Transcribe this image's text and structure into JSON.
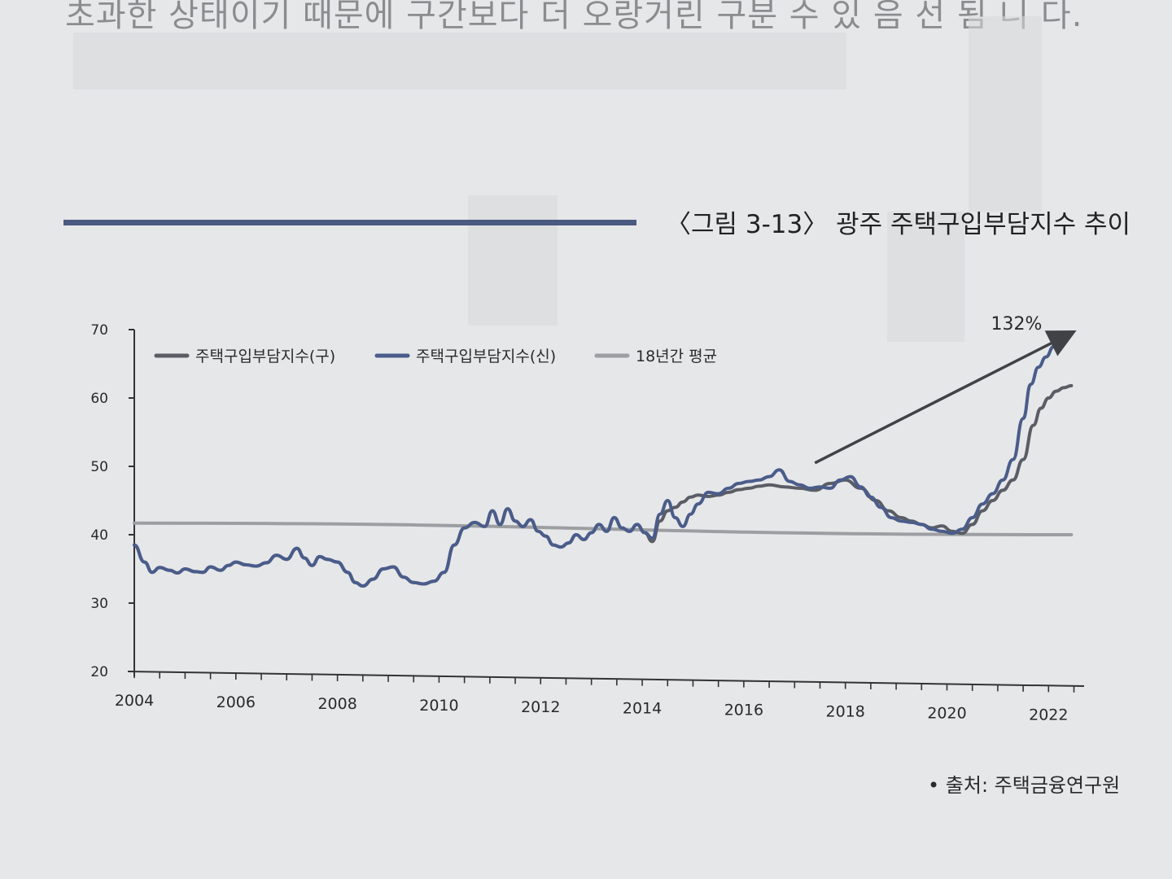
{
  "page": {
    "top_text": "초과한 상태이기 때문에 구간보다 더 오랑거린 구분 수 있 음 선 됨 니 다.",
    "figure_title": "〈그림 3-13〉 광주 주택구입부담지수 추이",
    "source": "• 출처: 주택금융연구원"
  },
  "chart_data": {
    "type": "line",
    "title": "〈그림 3-13〉 광주 주택구입부담지수 추이",
    "xlabel": "",
    "ylabel": "",
    "xlim": [
      2004,
      2022.7
    ],
    "ylim": [
      20,
      70
    ],
    "xticks": [
      2004,
      2006,
      2008,
      2010,
      2012,
      2014,
      2016,
      2018,
      2020,
      2022
    ],
    "xtick_labels": [
      "2004",
      "2006",
      "2008",
      "2010",
      "2012",
      "2014",
      "2016",
      "2018",
      "2020",
      "2022"
    ],
    "yticks": [
      20,
      30,
      40,
      50,
      60,
      70
    ],
    "ytick_labels": [
      "20",
      "30",
      "40",
      "50",
      "60",
      "70"
    ],
    "grid": false,
    "legend_position": "top-left",
    "series": [
      {
        "name": "주택구입부담지수(구)",
        "color": "#5a5d64",
        "x": [
          2004.0,
          2004.2,
          2004.35,
          2004.5,
          2004.7,
          2004.85,
          2005.0,
          2005.2,
          2005.35,
          2005.5,
          2005.7,
          2005.85,
          2006.0,
          2006.2,
          2006.4,
          2006.6,
          2006.8,
          2007.0,
          2007.2,
          2007.35,
          2007.5,
          2007.65,
          2007.8,
          2008.0,
          2008.2,
          2008.35,
          2008.5,
          2008.7,
          2008.9,
          2009.1,
          2009.3,
          2009.5,
          2009.7,
          2009.9,
          2010.1,
          2010.3,
          2010.5,
          2010.7,
          2010.9,
          2011.05,
          2011.2,
          2011.35,
          2011.5,
          2011.65,
          2011.8,
          2011.95,
          2012.1,
          2012.25,
          2012.4,
          2012.55,
          2012.7,
          2012.85,
          2013.0,
          2013.15,
          2013.3,
          2013.45,
          2013.6,
          2013.75,
          2013.9,
          2014.05,
          2014.2,
          2014.35,
          2014.5,
          2014.65,
          2014.8,
          2014.95,
          2015.1,
          2015.3,
          2015.5,
          2015.7,
          2015.9,
          2016.1,
          2016.3,
          2016.5,
          2016.8,
          2017.1,
          2017.4,
          2017.7,
          2018.0,
          2018.3,
          2018.6,
          2018.85,
          2019.1,
          2019.3,
          2019.5,
          2019.7,
          2019.9,
          2020.1,
          2020.3,
          2020.5,
          2020.7,
          2020.9,
          2021.1,
          2021.3,
          2021.5,
          2021.7,
          2021.85,
          2022.0,
          2022.15,
          2022.3,
          2022.45
        ],
        "values": [
          38.5,
          36.0,
          34.5,
          35.2,
          34.8,
          34.4,
          35.0,
          34.6,
          34.5,
          35.3,
          34.8,
          35.5,
          36.0,
          35.6,
          35.4,
          35.9,
          37.0,
          36.4,
          38.0,
          36.6,
          35.5,
          36.8,
          36.4,
          36.0,
          34.5,
          33.0,
          32.5,
          33.5,
          35.0,
          35.3,
          33.8,
          33.0,
          32.8,
          33.2,
          34.5,
          38.5,
          41.0,
          41.8,
          41.2,
          43.5,
          41.5,
          43.8,
          42.0,
          41.2,
          42.2,
          40.5,
          39.8,
          38.5,
          38.2,
          38.8,
          40.0,
          39.3,
          40.3,
          41.5,
          40.5,
          42.5,
          41.0,
          40.5,
          41.5,
          40.3,
          39.0,
          42.0,
          43.5,
          44.0,
          44.8,
          45.5,
          45.8,
          45.6,
          45.8,
          46.2,
          46.6,
          46.8,
          47.1,
          47.3,
          47.0,
          46.8,
          46.5,
          47.5,
          48.0,
          46.8,
          45.0,
          43.5,
          42.5,
          42.0,
          41.5,
          41.0,
          41.3,
          40.5,
          40.2,
          41.5,
          43.5,
          45.0,
          46.5,
          48.0,
          51.0,
          56.0,
          58.5,
          60.0,
          61.0,
          61.5,
          61.8
        ]
      },
      {
        "name": "주택구입부담지수(신)",
        "color": "#4a5c8a",
        "x": [
          2004.0,
          2004.2,
          2004.35,
          2004.5,
          2004.7,
          2004.85,
          2005.0,
          2005.2,
          2005.35,
          2005.5,
          2005.7,
          2005.85,
          2006.0,
          2006.2,
          2006.4,
          2006.6,
          2006.8,
          2007.0,
          2007.2,
          2007.35,
          2007.5,
          2007.65,
          2007.8,
          2008.0,
          2008.2,
          2008.35,
          2008.5,
          2008.7,
          2008.9,
          2009.1,
          2009.3,
          2009.5,
          2009.7,
          2009.9,
          2010.1,
          2010.3,
          2010.5,
          2010.7,
          2010.9,
          2011.05,
          2011.2,
          2011.35,
          2011.5,
          2011.65,
          2011.8,
          2011.95,
          2012.1,
          2012.25,
          2012.4,
          2012.55,
          2012.7,
          2012.85,
          2013.0,
          2013.15,
          2013.3,
          2013.45,
          2013.6,
          2013.75,
          2013.9,
          2014.05,
          2014.2,
          2014.35,
          2014.5,
          2014.65,
          2014.8,
          2014.95,
          2015.1,
          2015.3,
          2015.5,
          2015.7,
          2015.9,
          2016.1,
          2016.3,
          2016.5,
          2016.7,
          2016.9,
          2017.1,
          2017.3,
          2017.5,
          2017.7,
          2017.9,
          2018.1,
          2018.3,
          2018.5,
          2018.7,
          2018.9,
          2019.1,
          2019.3,
          2019.5,
          2019.7,
          2019.9,
          2020.1,
          2020.3,
          2020.5,
          2020.7,
          2020.9,
          2021.1,
          2021.3,
          2021.5,
          2021.65,
          2021.8,
          2021.95,
          2022.1,
          2022.25
        ],
        "values": [
          38.5,
          36.0,
          34.5,
          35.2,
          34.8,
          34.4,
          35.0,
          34.6,
          34.5,
          35.3,
          34.8,
          35.5,
          36.0,
          35.6,
          35.4,
          35.9,
          37.0,
          36.4,
          38.0,
          36.6,
          35.5,
          36.8,
          36.4,
          36.0,
          34.5,
          33.0,
          32.5,
          33.5,
          35.0,
          35.3,
          33.8,
          33.0,
          32.8,
          33.2,
          34.5,
          38.5,
          41.0,
          41.8,
          41.2,
          43.5,
          41.5,
          43.8,
          42.0,
          41.2,
          42.2,
          40.5,
          39.8,
          38.5,
          38.2,
          38.8,
          40.0,
          39.3,
          40.3,
          41.5,
          40.5,
          42.5,
          41.0,
          40.5,
          41.5,
          40.3,
          39.5,
          43.0,
          45.0,
          42.5,
          41.2,
          43.0,
          44.5,
          46.2,
          46.0,
          46.8,
          47.5,
          47.8,
          48.0,
          48.5,
          49.5,
          47.8,
          47.3,
          46.8,
          47.0,
          46.8,
          48.0,
          48.5,
          47.0,
          45.5,
          44.0,
          42.5,
          42.0,
          41.8,
          41.5,
          40.8,
          40.5,
          40.2,
          40.8,
          42.5,
          44.5,
          46.0,
          48.0,
          51.0,
          57.0,
          62.0,
          64.5,
          66.0,
          67.5,
          68.8
        ]
      },
      {
        "name": "18년간 평균",
        "color": "#9c9ea2",
        "x": [
          2004.0,
          2022.45
        ],
        "values": [
          41.7,
          40.0
        ]
      }
    ],
    "annotations": [
      {
        "text": "132%",
        "type": "arrow",
        "from": [
          2017.4,
          50.5
        ],
        "to": [
          2022.45,
          69.5
        ]
      }
    ]
  }
}
